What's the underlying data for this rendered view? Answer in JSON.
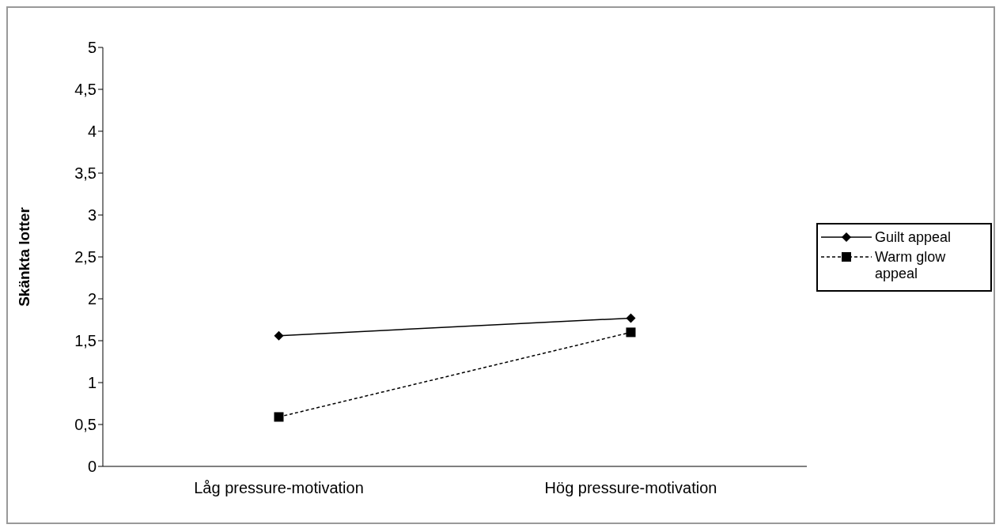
{
  "chart_data": {
    "type": "line",
    "ylabel": "Skänkta lotter",
    "categories": [
      "Låg pressure-motivation",
      "Hög pressure-motivation"
    ],
    "series": [
      {
        "name": "Guilt appeal",
        "color": "#000000",
        "values": [
          1.56,
          1.77
        ],
        "marker": "diamond",
        "line_style": "solid"
      },
      {
        "name": "Warm glow appeal",
        "color": "#000000",
        "values": [
          0.59,
          1.6
        ],
        "marker": "square",
        "line_style": "dashed"
      }
    ],
    "ylim": [
      0,
      5
    ],
    "yticks": [
      0,
      {
        "value": 0.5,
        "label": "0,5"
      },
      1,
      {
        "value": 1.5,
        "label": "1,5"
      },
      2,
      {
        "value": 2.5,
        "label": "2,5"
      },
      3,
      {
        "value": 3.5,
        "label": "3,5"
      },
      4,
      {
        "value": 4.5,
        "label": "4,5"
      },
      5
    ],
    "grid": false,
    "legend": "right"
  }
}
